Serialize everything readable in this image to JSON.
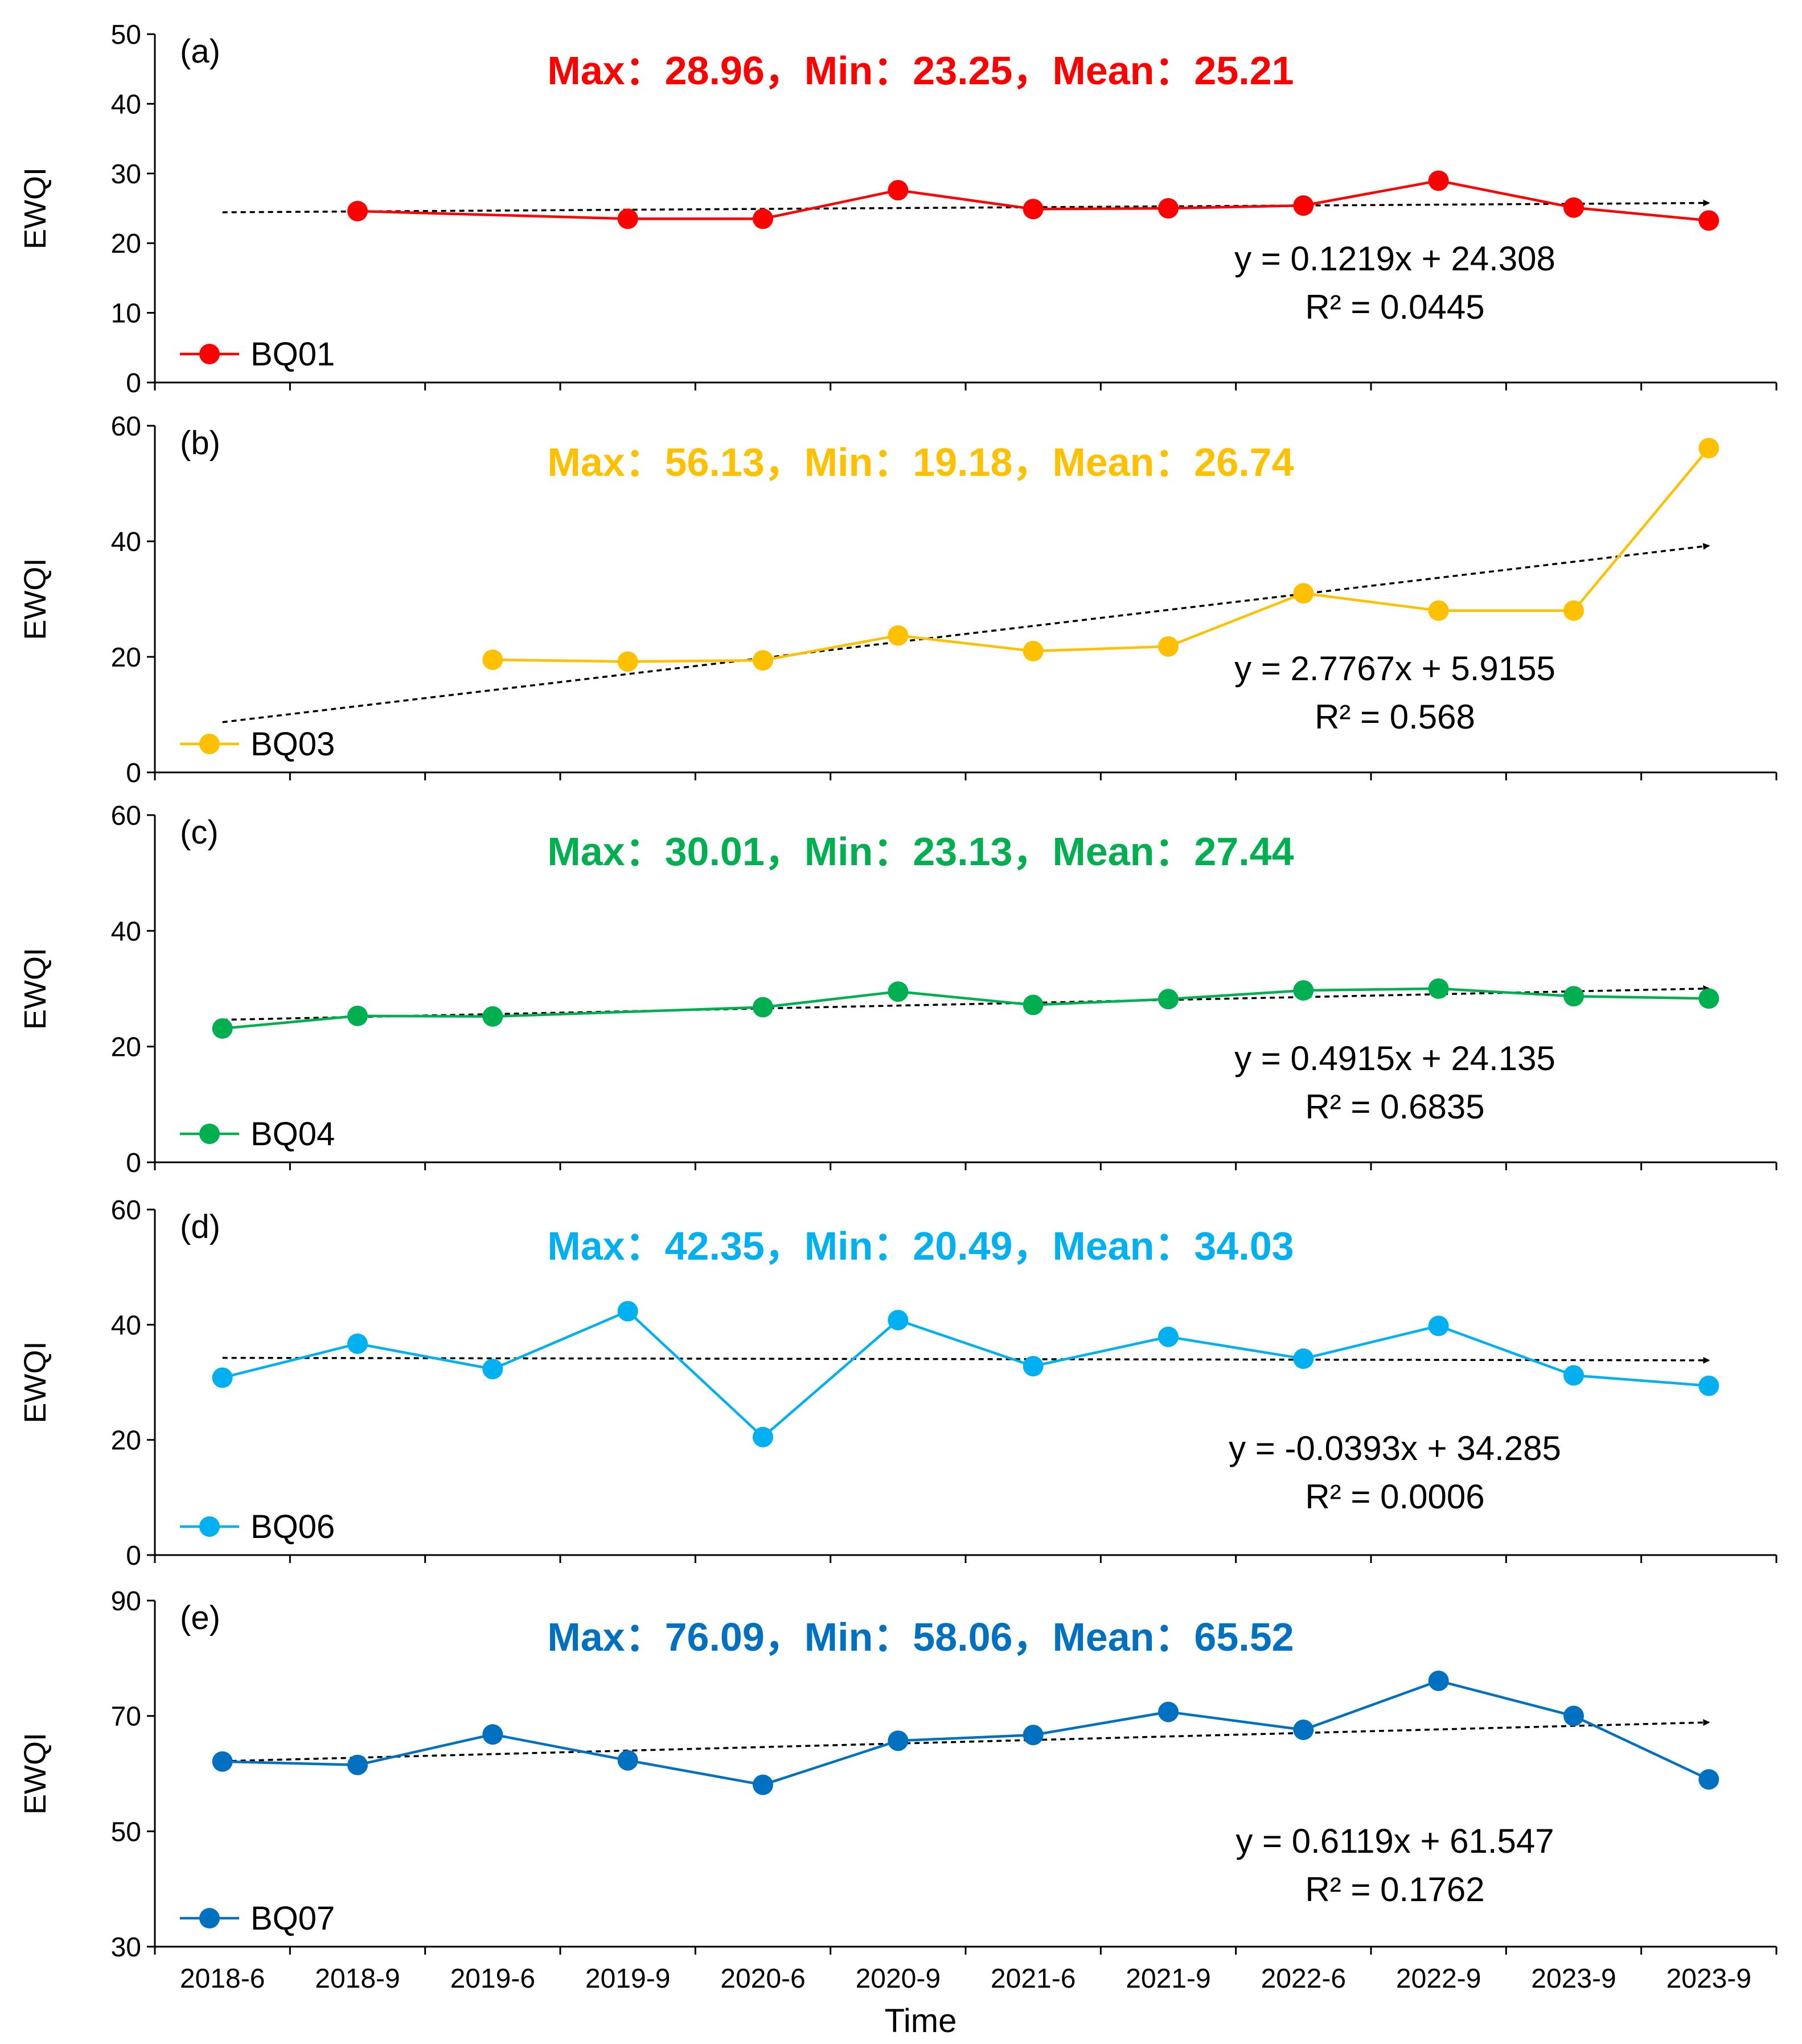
{
  "x_categories": [
    "2018-6",
    "2018-9",
    "2019-6",
    "2019-9",
    "2020-6",
    "2020-9",
    "2021-6",
    "2021-9",
    "2022-6",
    "2022-9",
    "2023-9",
    "2023-9"
  ],
  "x_axis_label": "Time",
  "chart_data": [
    {
      "type": "line",
      "panel_label": "(a)",
      "ylabel": "EWQI",
      "ylim": [
        0,
        50
      ],
      "y_ticks": [
        0,
        10,
        20,
        30,
        40,
        50
      ],
      "color": "#ff0000",
      "stats_text": "Max：28.96，Min：23.25，Mean：25.21",
      "equation": "y = 0.1219x + 24.308",
      "r_squared": "R² = 0.0445",
      "trend": {
        "slope": 0.1219,
        "intercept": 24.308
      },
      "series": [
        {
          "name": "BQ01",
          "values": [
            null,
            24.6,
            null,
            23.5,
            23.5,
            27.6,
            24.9,
            25.0,
            25.4,
            28.96,
            25.1,
            23.25
          ]
        }
      ]
    },
    {
      "type": "line",
      "panel_label": "(b)",
      "ylabel": "EWQI",
      "ylim": [
        0,
        60
      ],
      "y_ticks": [
        0,
        20,
        40,
        60
      ],
      "color": "#ffc000",
      "stats_text": "Max：56.13，Min：19.18，Mean：26.74",
      "equation": "y = 2.7767x + 5.9155",
      "r_squared": "R² = 0.568",
      "trend": {
        "slope": 2.7767,
        "intercept": 5.9155
      },
      "series": [
        {
          "name": "BQ03",
          "values": [
            null,
            null,
            19.5,
            19.18,
            19.4,
            23.7,
            21.0,
            21.8,
            31.0,
            28.0,
            28.0,
            56.13
          ]
        }
      ]
    },
    {
      "type": "line",
      "panel_label": "(c)",
      "ylabel": "EWQI",
      "ylim": [
        0,
        60
      ],
      "y_ticks": [
        0,
        20,
        40,
        60
      ],
      "color": "#00b050",
      "stats_text": "Max：30.01，Min：23.13，Mean：27.44",
      "equation": "y = 0.4915x + 24.135",
      "r_squared": "R² = 0.6835",
      "trend": {
        "slope": 0.4915,
        "intercept": 24.135
      },
      "series": [
        {
          "name": "BQ04",
          "values": [
            23.13,
            25.3,
            25.2,
            null,
            26.8,
            29.5,
            27.2,
            28.2,
            29.7,
            30.01,
            28.7,
            28.3
          ]
        }
      ]
    },
    {
      "type": "line",
      "panel_label": "(d)",
      "ylabel": "EWQI",
      "ylim": [
        0,
        60
      ],
      "y_ticks": [
        0,
        20,
        40,
        60
      ],
      "color": "#00b0f0",
      "stats_text": "Max：42.35，Min：20.49，Mean：34.03",
      "equation": "y = -0.0393x + 34.285",
      "r_squared": "R² = 0.0006",
      "trend": {
        "slope": -0.0393,
        "intercept": 34.285
      },
      "series": [
        {
          "name": "BQ06",
          "values": [
            30.8,
            36.7,
            32.3,
            42.35,
            20.49,
            40.8,
            32.8,
            37.9,
            34.1,
            39.8,
            31.2,
            29.4
          ]
        }
      ]
    },
    {
      "type": "line",
      "panel_label": "(e)",
      "ylabel": "EWQI",
      "ylim": [
        30,
        90
      ],
      "y_ticks": [
        30,
        50,
        70,
        90
      ],
      "color": "#0070c0",
      "stats_text": "Max：76.09，Min：58.06，Mean：65.52",
      "equation": "y = 0.6119x + 61.547",
      "r_squared": "R² = 0.1762",
      "trend": {
        "slope": 0.6119,
        "intercept": 61.547
      },
      "series": [
        {
          "name": "BQ07",
          "values": [
            62.1,
            61.5,
            66.8,
            62.3,
            58.06,
            65.7,
            66.7,
            70.7,
            67.6,
            76.09,
            70.0,
            59.0
          ]
        }
      ]
    }
  ]
}
